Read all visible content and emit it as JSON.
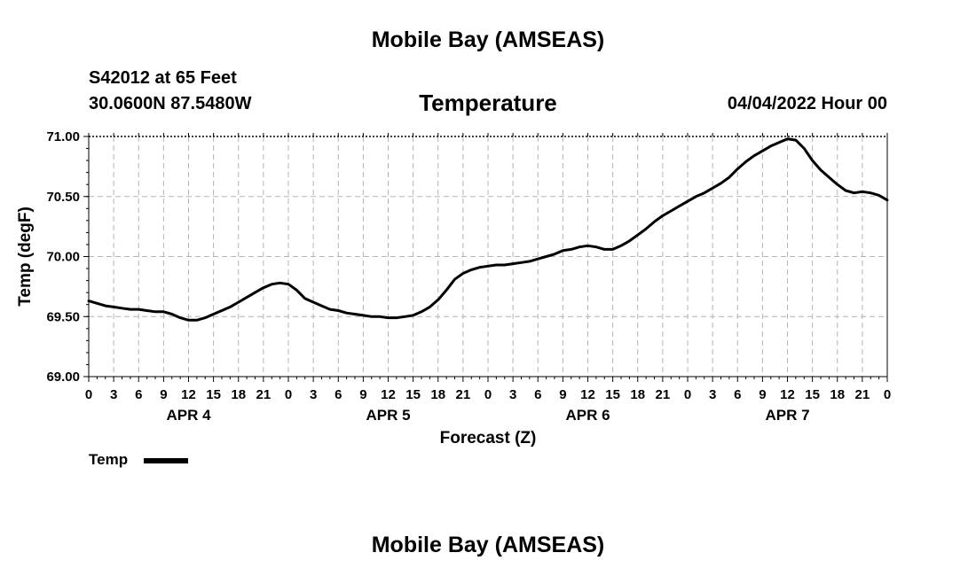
{
  "page": {
    "top_title": "Mobile Bay (AMSEAS)",
    "bottom_title": "Mobile Bay (AMSEAS)",
    "station_line": "S42012 at 65 Feet",
    "coords_line": "30.0600N  87.5480W",
    "date_line": "04/04/2022 Hour 00"
  },
  "legend": {
    "label": "Temp",
    "color": "#000000"
  },
  "chart_data": {
    "type": "line",
    "title": "Temperature",
    "xlabel": "Forecast (Z)",
    "ylabel": "Temp (degF)",
    "ylim": [
      69.0,
      71.0
    ],
    "xlim": [
      0,
      96
    ],
    "grid": true,
    "legend_position": "bottom-left",
    "y_ticks": [
      "69.00",
      "69.50",
      "70.00",
      "70.50",
      "71.00"
    ],
    "x_ticks": [
      {
        "x": 0,
        "label": "0"
      },
      {
        "x": 3,
        "label": "3"
      },
      {
        "x": 6,
        "label": "6"
      },
      {
        "x": 9,
        "label": "9"
      },
      {
        "x": 12,
        "label": "12"
      },
      {
        "x": 15,
        "label": "15"
      },
      {
        "x": 18,
        "label": "18"
      },
      {
        "x": 21,
        "label": "21"
      },
      {
        "x": 24,
        "label": "0"
      },
      {
        "x": 27,
        "label": "3"
      },
      {
        "x": 30,
        "label": "6"
      },
      {
        "x": 33,
        "label": "9"
      },
      {
        "x": 36,
        "label": "12"
      },
      {
        "x": 39,
        "label": "15"
      },
      {
        "x": 42,
        "label": "18"
      },
      {
        "x": 45,
        "label": "21"
      },
      {
        "x": 48,
        "label": "0"
      },
      {
        "x": 51,
        "label": "3"
      },
      {
        "x": 54,
        "label": "6"
      },
      {
        "x": 57,
        "label": "9"
      },
      {
        "x": 60,
        "label": "12"
      },
      {
        "x": 63,
        "label": "15"
      },
      {
        "x": 66,
        "label": "18"
      },
      {
        "x": 69,
        "label": "21"
      },
      {
        "x": 72,
        "label": "0"
      },
      {
        "x": 75,
        "label": "3"
      },
      {
        "x": 78,
        "label": "6"
      },
      {
        "x": 81,
        "label": "9"
      },
      {
        "x": 84,
        "label": "12"
      },
      {
        "x": 87,
        "label": "15"
      },
      {
        "x": 90,
        "label": "18"
      },
      {
        "x": 93,
        "label": "21"
      },
      {
        "x": 96,
        "label": "0"
      }
    ],
    "day_labels": [
      {
        "x": 12,
        "label": "APR 4"
      },
      {
        "x": 36,
        "label": "APR 5"
      },
      {
        "x": 60,
        "label": "APR 6"
      },
      {
        "x": 84,
        "label": "APR 7"
      }
    ],
    "series": [
      {
        "name": "Temp",
        "x": [
          0,
          1,
          2,
          3,
          4,
          5,
          6,
          7,
          8,
          9,
          10,
          11,
          12,
          13,
          14,
          15,
          16,
          17,
          18,
          19,
          20,
          21,
          22,
          23,
          24,
          25,
          26,
          27,
          28,
          29,
          30,
          31,
          32,
          33,
          34,
          35,
          36,
          37,
          38,
          39,
          40,
          41,
          42,
          43,
          44,
          45,
          46,
          47,
          48,
          49,
          50,
          51,
          52,
          53,
          54,
          55,
          56,
          57,
          58,
          59,
          60,
          61,
          62,
          63,
          64,
          65,
          66,
          67,
          68,
          69,
          70,
          71,
          72,
          73,
          74,
          75,
          76,
          77,
          78,
          79,
          80,
          81,
          82,
          83,
          84,
          85,
          86,
          87,
          88,
          89,
          90,
          91,
          92,
          93,
          94,
          95,
          96
        ],
        "values": [
          69.63,
          69.61,
          69.59,
          69.58,
          69.57,
          69.56,
          69.56,
          69.55,
          69.54,
          69.54,
          69.52,
          69.49,
          69.47,
          69.47,
          69.49,
          69.52,
          69.55,
          69.58,
          69.62,
          69.66,
          69.7,
          69.74,
          69.77,
          69.78,
          69.77,
          69.72,
          69.65,
          69.62,
          69.59,
          69.56,
          69.55,
          69.53,
          69.52,
          69.51,
          69.5,
          69.5,
          69.49,
          69.49,
          69.5,
          69.51,
          69.54,
          69.58,
          69.64,
          69.72,
          69.81,
          69.86,
          69.89,
          69.91,
          69.92,
          69.93,
          69.93,
          69.94,
          69.95,
          69.96,
          69.98,
          70.0,
          70.02,
          70.05,
          70.06,
          70.08,
          70.09,
          70.08,
          70.06,
          70.06,
          70.09,
          70.13,
          70.18,
          70.23,
          70.29,
          70.34,
          70.38,
          70.42,
          70.46,
          70.5,
          70.53,
          70.57,
          70.61,
          70.66,
          70.73,
          70.79,
          70.84,
          70.88,
          70.92,
          70.95,
          70.98,
          70.97,
          70.9,
          70.8,
          70.72,
          70.66,
          70.6,
          70.55,
          70.53,
          70.54,
          70.53,
          70.51,
          70.47
        ]
      }
    ]
  }
}
